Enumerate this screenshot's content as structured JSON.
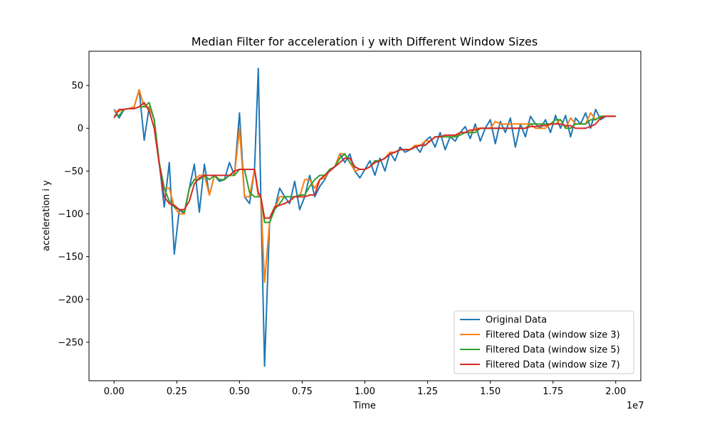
{
  "chart_data": {
    "type": "line",
    "title": "Median Filter for acceleration i y with Different Window Sizes",
    "xlabel": "Time",
    "ylabel": "acceleration i y",
    "x_offset_label": "1e7",
    "xlim": [
      -0.1,
      2.1
    ],
    "ylim": [
      -295,
      90
    ],
    "x_ticks": [
      0,
      0.25,
      0.5,
      0.75,
      1.0,
      1.25,
      1.5,
      1.75,
      2.0
    ],
    "x_tick_labels": [
      "0.00",
      "0.25",
      "0.50",
      "0.75",
      "1.00",
      "1.25",
      "1.50",
      "1.75",
      "2.00"
    ],
    "y_ticks": [
      -250,
      -200,
      -150,
      -100,
      -50,
      0,
      50
    ],
    "y_tick_labels": [
      "−250",
      "−200",
      "−150",
      "−100",
      "−50",
      "0",
      "50"
    ],
    "grid": false,
    "legend_position": "bottom-right",
    "series": [
      {
        "name": "Original Data",
        "color": "#1f77b4",
        "x": [
          0.0,
          0.02,
          0.04,
          0.06,
          0.08,
          0.1,
          0.12,
          0.14,
          0.16,
          0.18,
          0.2,
          0.22,
          0.24,
          0.26,
          0.28,
          0.3,
          0.32,
          0.34,
          0.36,
          0.38,
          0.4,
          0.42,
          0.44,
          0.46,
          0.48,
          0.5,
          0.52,
          0.54,
          0.56,
          0.575,
          0.585,
          0.6,
          0.62,
          0.64,
          0.66,
          0.68,
          0.7,
          0.72,
          0.74,
          0.76,
          0.78,
          0.8,
          0.82,
          0.84,
          0.86,
          0.88,
          0.9,
          0.92,
          0.94,
          0.96,
          0.98,
          1.0,
          1.02,
          1.04,
          1.06,
          1.08,
          1.1,
          1.12,
          1.14,
          1.16,
          1.18,
          1.2,
          1.22,
          1.24,
          1.26,
          1.28,
          1.3,
          1.32,
          1.34,
          1.36,
          1.38,
          1.4,
          1.42,
          1.44,
          1.46,
          1.48,
          1.5,
          1.52,
          1.54,
          1.56,
          1.58,
          1.6,
          1.62,
          1.64,
          1.66,
          1.68,
          1.7,
          1.72,
          1.74,
          1.76,
          1.78,
          1.8,
          1.82,
          1.84,
          1.86,
          1.88,
          1.9,
          1.92,
          1.94,
          1.96,
          1.98,
          2.0
        ],
        "y": [
          22,
          12,
          22,
          23,
          25,
          45,
          -14,
          25,
          10,
          -40,
          -92,
          -40,
          -147,
          -95,
          -100,
          -70,
          -42,
          -98,
          -42,
          -78,
          -55,
          -62,
          -60,
          -40,
          -55,
          18,
          -80,
          -88,
          -48,
          70,
          -80,
          -278,
          -110,
          -95,
          -70,
          -80,
          -88,
          -62,
          -95,
          -80,
          -55,
          -80,
          -68,
          -60,
          -48,
          -45,
          -30,
          -40,
          -30,
          -50,
          -58,
          -48,
          -38,
          -55,
          -35,
          -50,
          -28,
          -38,
          -22,
          -28,
          -25,
          -20,
          -28,
          -15,
          -10,
          -22,
          -5,
          -25,
          -10,
          -15,
          -5,
          2,
          -12,
          5,
          -15,
          0,
          10,
          -18,
          8,
          -5,
          12,
          -22,
          5,
          -10,
          14,
          5,
          0,
          10,
          -5,
          15,
          0,
          15,
          -10,
          12,
          5,
          18,
          0,
          22,
          10,
          14,
          14,
          14
        ]
      },
      {
        "name": "Filtered Data (window size 3)",
        "color": "#ff7f0e",
        "x": [
          0.0,
          0.02,
          0.04,
          0.06,
          0.08,
          0.1,
          0.12,
          0.14,
          0.16,
          0.18,
          0.2,
          0.22,
          0.24,
          0.26,
          0.28,
          0.3,
          0.32,
          0.34,
          0.36,
          0.38,
          0.4,
          0.42,
          0.44,
          0.46,
          0.48,
          0.5,
          0.52,
          0.54,
          0.56,
          0.575,
          0.585,
          0.6,
          0.62,
          0.64,
          0.66,
          0.68,
          0.7,
          0.72,
          0.74,
          0.76,
          0.78,
          0.8,
          0.82,
          0.84,
          0.86,
          0.88,
          0.9,
          0.92,
          0.94,
          0.96,
          0.98,
          1.0,
          1.02,
          1.04,
          1.06,
          1.08,
          1.1,
          1.12,
          1.14,
          1.16,
          1.18,
          1.2,
          1.22,
          1.24,
          1.26,
          1.28,
          1.3,
          1.32,
          1.34,
          1.36,
          1.38,
          1.4,
          1.42,
          1.44,
          1.46,
          1.48,
          1.5,
          1.52,
          1.54,
          1.56,
          1.58,
          1.6,
          1.62,
          1.64,
          1.66,
          1.68,
          1.7,
          1.72,
          1.74,
          1.76,
          1.78,
          1.8,
          1.82,
          1.84,
          1.86,
          1.88,
          1.9,
          1.92,
          1.94,
          1.96,
          1.98,
          2.0
        ],
        "y": [
          20,
          20,
          22,
          23,
          25,
          45,
          25,
          25,
          10,
          -40,
          -70,
          -70,
          -92,
          -100,
          -100,
          -70,
          -60,
          -55,
          -55,
          -78,
          -55,
          -60,
          -60,
          -55,
          -55,
          0,
          -80,
          -80,
          -48,
          -80,
          -80,
          -180,
          -110,
          -95,
          -80,
          -80,
          -80,
          -80,
          -80,
          -60,
          -60,
          -70,
          -60,
          -58,
          -48,
          -45,
          -30,
          -30,
          -40,
          -50,
          -48,
          -48,
          -45,
          -38,
          -38,
          -35,
          -28,
          -28,
          -25,
          -25,
          -25,
          -20,
          -20,
          -15,
          -15,
          -10,
          -10,
          -10,
          -10,
          -10,
          -5,
          -5,
          -5,
          0,
          0,
          0,
          0,
          8,
          5,
          5,
          5,
          5,
          5,
          5,
          5,
          0,
          0,
          0,
          5,
          5,
          10,
          0,
          12,
          5,
          5,
          5,
          18,
          10,
          14,
          14,
          14,
          14
        ]
      },
      {
        "name": "Filtered Data (window size 5)",
        "color": "#2ca02c",
        "x": [
          0.0,
          0.02,
          0.04,
          0.06,
          0.08,
          0.1,
          0.12,
          0.14,
          0.16,
          0.18,
          0.2,
          0.22,
          0.24,
          0.26,
          0.28,
          0.3,
          0.32,
          0.34,
          0.36,
          0.38,
          0.4,
          0.42,
          0.44,
          0.46,
          0.48,
          0.5,
          0.52,
          0.54,
          0.56,
          0.575,
          0.585,
          0.6,
          0.62,
          0.64,
          0.66,
          0.68,
          0.7,
          0.72,
          0.74,
          0.76,
          0.78,
          0.8,
          0.82,
          0.84,
          0.86,
          0.88,
          0.9,
          0.92,
          0.94,
          0.96,
          0.98,
          1.0,
          1.02,
          1.04,
          1.06,
          1.08,
          1.1,
          1.12,
          1.14,
          1.16,
          1.18,
          1.2,
          1.22,
          1.24,
          1.26,
          1.28,
          1.3,
          1.32,
          1.34,
          1.36,
          1.38,
          1.4,
          1.42,
          1.44,
          1.46,
          1.48,
          1.5,
          1.52,
          1.54,
          1.56,
          1.58,
          1.6,
          1.62,
          1.64,
          1.66,
          1.68,
          1.7,
          1.72,
          1.74,
          1.76,
          1.78,
          1.8,
          1.82,
          1.84,
          1.86,
          1.88,
          1.9,
          1.92,
          1.94,
          1.96,
          1.98,
          2.0
        ],
        "y": [
          15,
          15,
          22,
          23,
          23,
          25,
          25,
          30,
          10,
          -40,
          -70,
          -85,
          -92,
          -95,
          -98,
          -70,
          -60,
          -60,
          -55,
          -60,
          -55,
          -60,
          -60,
          -55,
          -55,
          -48,
          -48,
          -75,
          -80,
          -80,
          -80,
          -110,
          -110,
          -95,
          -88,
          -80,
          -80,
          -80,
          -78,
          -78,
          -68,
          -60,
          -55,
          -55,
          -48,
          -45,
          -35,
          -30,
          -40,
          -45,
          -48,
          -48,
          -45,
          -38,
          -38,
          -35,
          -30,
          -28,
          -25,
          -25,
          -25,
          -22,
          -20,
          -20,
          -15,
          -10,
          -10,
          -10,
          -10,
          -10,
          -8,
          -5,
          -5,
          -5,
          0,
          0,
          0,
          0,
          0,
          0,
          0,
          0,
          0,
          0,
          5,
          5,
          5,
          5,
          5,
          10,
          10,
          0,
          0,
          5,
          5,
          5,
          10,
          10,
          14,
          14,
          14,
          14
        ]
      },
      {
        "name": "Filtered Data (window size 7)",
        "color": "#d62728",
        "x": [
          0.0,
          0.02,
          0.04,
          0.06,
          0.08,
          0.1,
          0.12,
          0.14,
          0.16,
          0.18,
          0.2,
          0.22,
          0.24,
          0.26,
          0.28,
          0.3,
          0.32,
          0.34,
          0.36,
          0.38,
          0.4,
          0.42,
          0.44,
          0.46,
          0.48,
          0.5,
          0.52,
          0.54,
          0.56,
          0.575,
          0.585,
          0.6,
          0.62,
          0.64,
          0.66,
          0.68,
          0.7,
          0.72,
          0.74,
          0.76,
          0.78,
          0.8,
          0.82,
          0.84,
          0.86,
          0.88,
          0.9,
          0.92,
          0.94,
          0.96,
          0.98,
          1.0,
          1.02,
          1.04,
          1.06,
          1.08,
          1.1,
          1.12,
          1.14,
          1.16,
          1.18,
          1.2,
          1.22,
          1.24,
          1.26,
          1.28,
          1.3,
          1.32,
          1.34,
          1.36,
          1.38,
          1.4,
          1.42,
          1.44,
          1.46,
          1.48,
          1.5,
          1.52,
          1.54,
          1.56,
          1.58,
          1.6,
          1.62,
          1.64,
          1.66,
          1.68,
          1.7,
          1.72,
          1.74,
          1.76,
          1.78,
          1.8,
          1.82,
          1.84,
          1.86,
          1.88,
          1.9,
          1.92,
          1.94,
          1.96,
          1.98,
          2.0
        ],
        "y": [
          12,
          22,
          22,
          23,
          23,
          25,
          30,
          20,
          0,
          -42,
          -80,
          -88,
          -90,
          -95,
          -95,
          -85,
          -65,
          -58,
          -55,
          -55,
          -55,
          -55,
          -55,
          -55,
          -50,
          -48,
          -48,
          -48,
          -48,
          -75,
          -80,
          -105,
          -105,
          -92,
          -90,
          -88,
          -85,
          -80,
          -80,
          -80,
          -78,
          -78,
          -60,
          -55,
          -50,
          -45,
          -40,
          -35,
          -35,
          -45,
          -48,
          -48,
          -45,
          -40,
          -38,
          -35,
          -30,
          -28,
          -25,
          -25,
          -25,
          -22,
          -20,
          -20,
          -15,
          -10,
          -10,
          -8,
          -8,
          -8,
          -5,
          -5,
          -2,
          -2,
          0,
          0,
          0,
          0,
          0,
          0,
          0,
          0,
          0,
          0,
          2,
          2,
          3,
          3,
          5,
          5,
          5,
          3,
          3,
          0,
          0,
          0,
          2,
          5,
          12,
          14,
          14,
          14
        ]
      }
    ]
  }
}
